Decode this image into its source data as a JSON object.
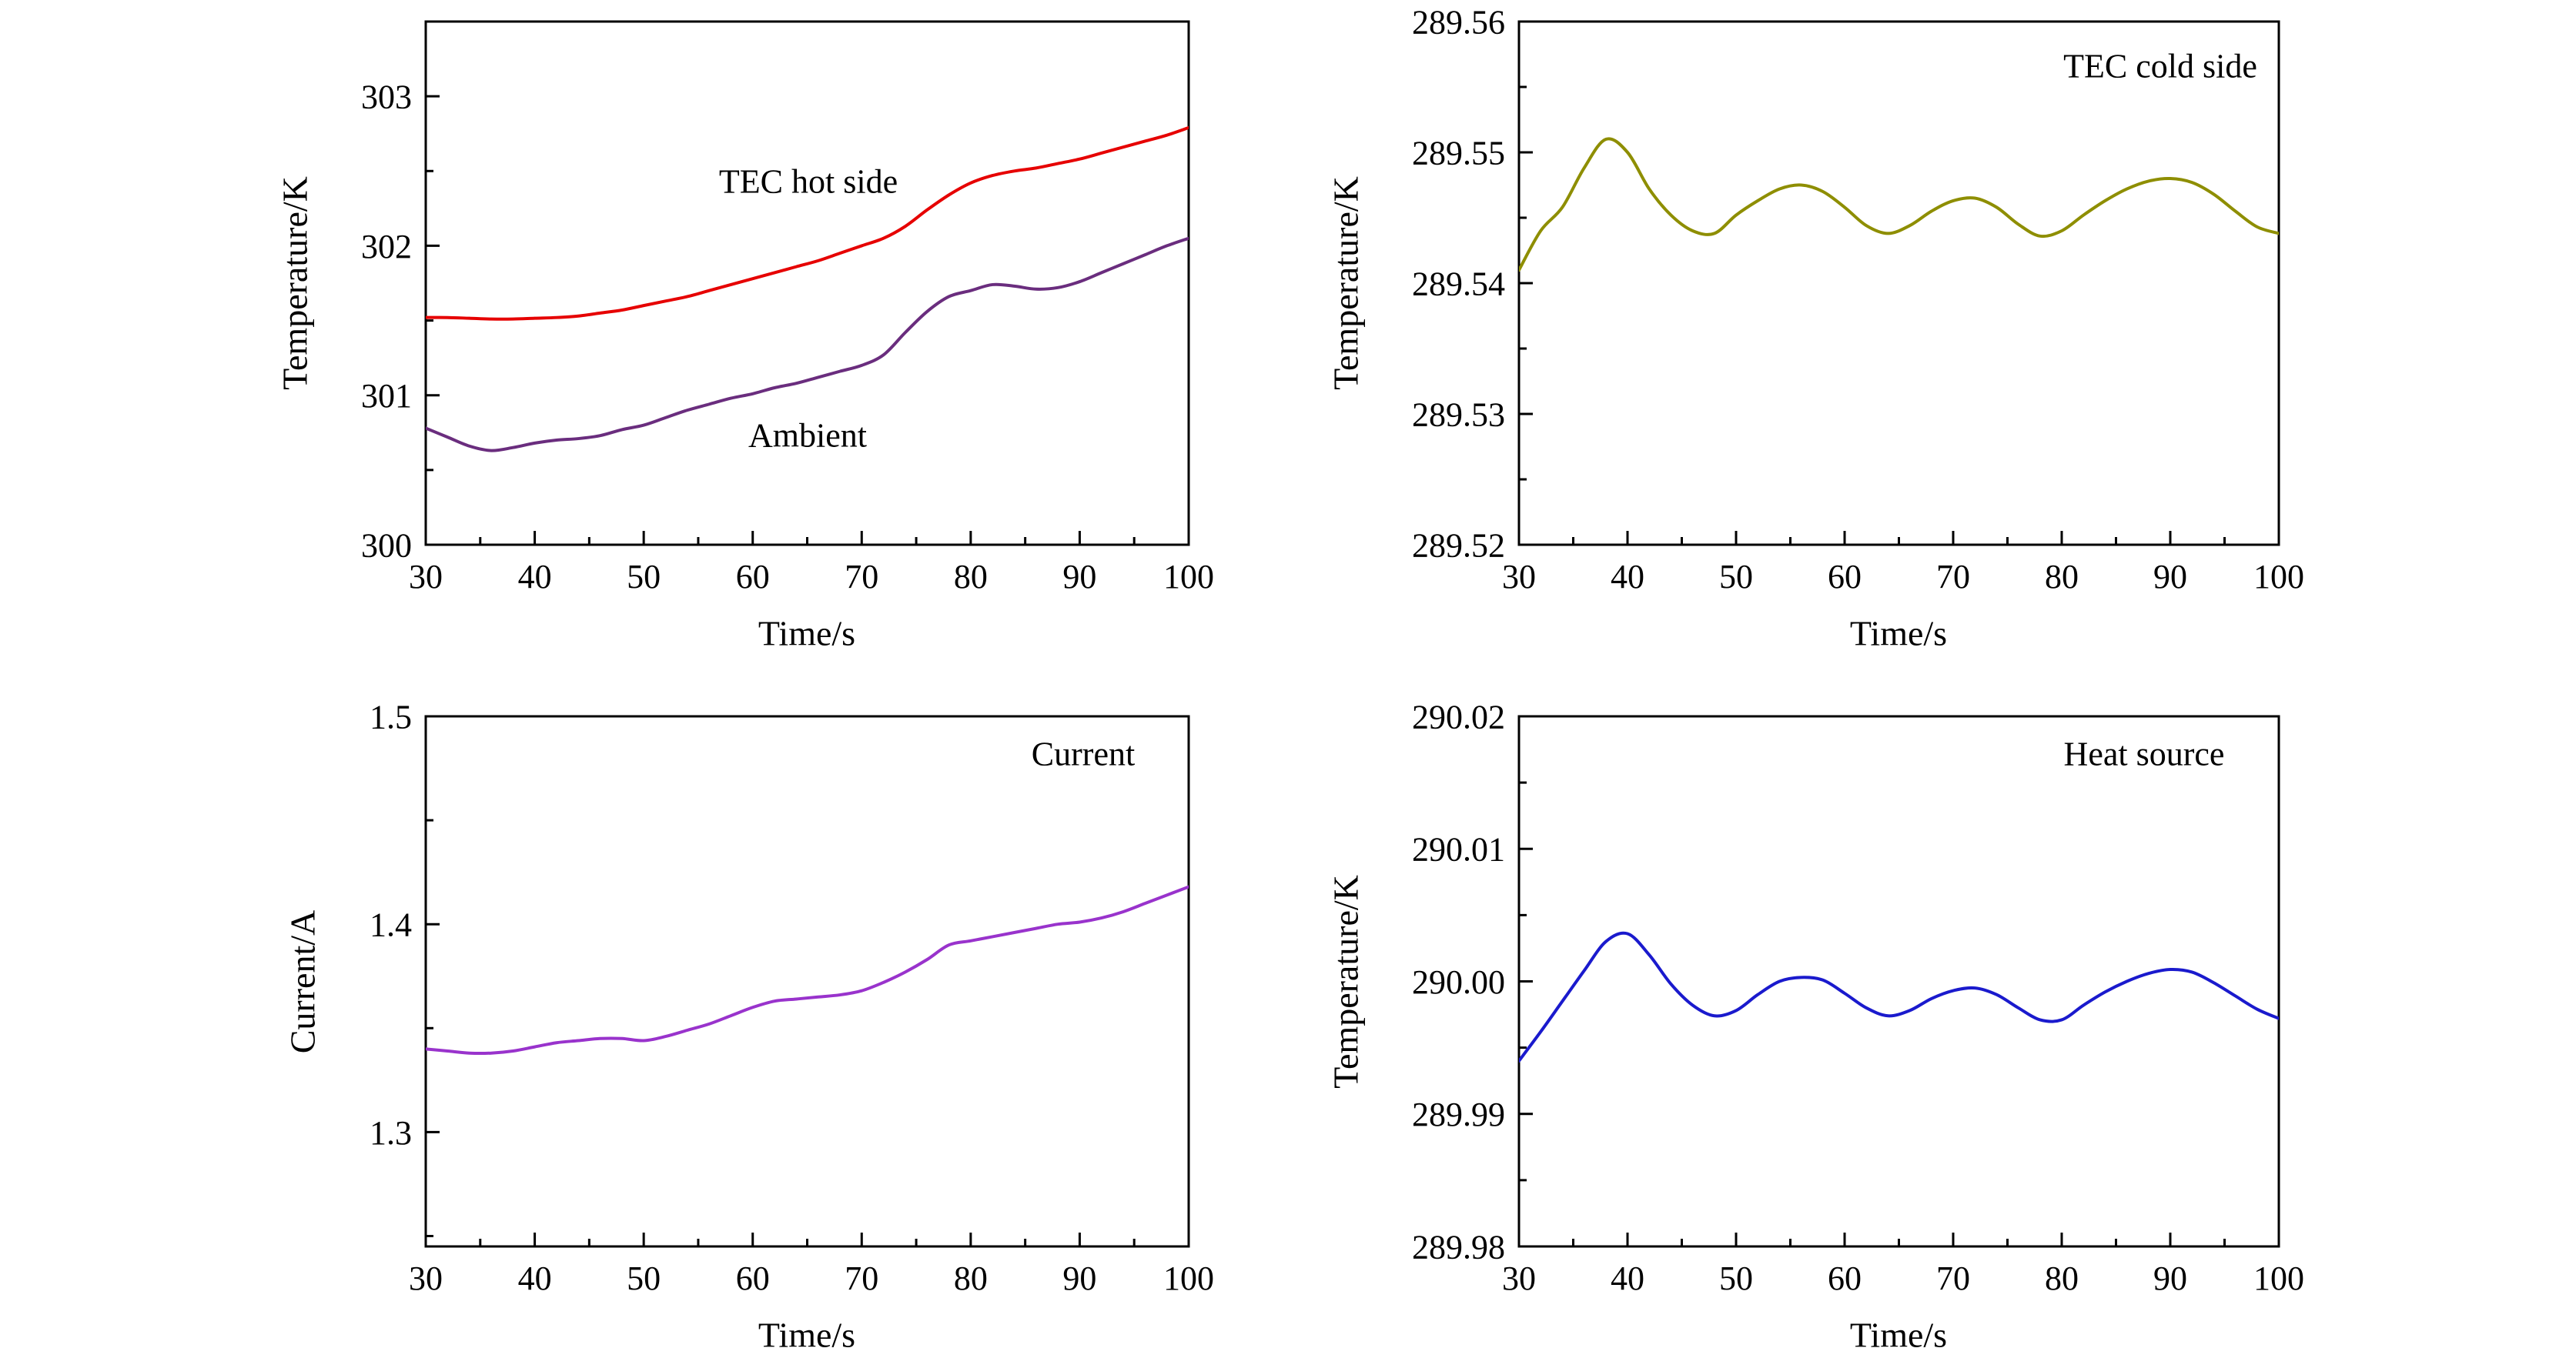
{
  "page": {
    "background": "#ffffff",
    "text_color": "#000000"
  },
  "chart_data": [
    {
      "type": "line",
      "title": "",
      "xlabel": "Time/s",
      "ylabel": "Temperature/K",
      "xlim": [
        30,
        100
      ],
      "ylim": [
        300,
        303.5
      ],
      "xticks": [
        30,
        40,
        50,
        60,
        70,
        80,
        90,
        100
      ],
      "xtick_labels": [
        "30",
        "40",
        "50",
        "60",
        "70",
        "80",
        "90",
        "100"
      ],
      "yticks": [
        300,
        301,
        302,
        303
      ],
      "ytick_labels": [
        "300",
        "301",
        "302",
        "303"
      ],
      "xminor_step": 5,
      "yminor_step": 0.5,
      "grid": false,
      "legend": "none",
      "series": [
        {
          "name": "TEC hot side",
          "color": "#e60000",
          "x": [
            30,
            32,
            34,
            36,
            38,
            40,
            42,
            44,
            46,
            48,
            50,
            52,
            54,
            56,
            58,
            60,
            62,
            64,
            66,
            68,
            70,
            72,
            74,
            76,
            78,
            80,
            82,
            84,
            86,
            88,
            90,
            92,
            94,
            96,
            98,
            100
          ],
          "y": [
            301.52,
            301.52,
            301.515,
            301.51,
            301.51,
            301.515,
            301.52,
            301.53,
            301.55,
            301.57,
            301.6,
            301.63,
            301.66,
            301.7,
            301.74,
            301.78,
            301.82,
            301.86,
            301.9,
            301.95,
            302.0,
            302.05,
            302.13,
            302.24,
            302.34,
            302.42,
            302.47,
            302.5,
            302.52,
            302.55,
            302.58,
            302.62,
            302.66,
            302.7,
            302.74,
            302.79
          ]
        },
        {
          "name": "Ambient",
          "color": "#6a2d7e",
          "x": [
            30,
            32,
            34,
            36,
            38,
            40,
            42,
            44,
            46,
            48,
            50,
            52,
            54,
            56,
            58,
            60,
            62,
            64,
            66,
            68,
            70,
            72,
            74,
            76,
            78,
            80,
            82,
            84,
            86,
            88,
            90,
            92,
            94,
            96,
            98,
            100
          ],
          "y": [
            300.78,
            300.72,
            300.66,
            300.63,
            300.65,
            300.68,
            300.7,
            300.71,
            300.73,
            300.77,
            300.8,
            300.85,
            300.9,
            300.94,
            300.98,
            301.01,
            301.05,
            301.08,
            301.12,
            301.16,
            301.2,
            301.27,
            301.42,
            301.56,
            301.66,
            301.7,
            301.74,
            301.73,
            301.71,
            301.72,
            301.76,
            301.82,
            301.88,
            301.94,
            302.0,
            302.05
          ]
        }
      ],
      "annotations": [
        {
          "text": "TEC hot side"
        },
        {
          "text": "Ambient"
        }
      ]
    },
    {
      "type": "line",
      "title": "",
      "xlabel": "Time/s",
      "ylabel": "Temperature/K",
      "xlim": [
        30,
        100
      ],
      "ylim": [
        289.52,
        289.56
      ],
      "xticks": [
        30,
        40,
        50,
        60,
        70,
        80,
        90,
        100
      ],
      "xtick_labels": [
        "30",
        "40",
        "50",
        "60",
        "70",
        "80",
        "90",
        "100"
      ],
      "yticks": [
        289.52,
        289.53,
        289.54,
        289.55,
        289.56
      ],
      "ytick_labels": [
        "289.52",
        "289.53",
        "289.54",
        "289.55",
        "289.56"
      ],
      "xminor_step": 5,
      "yminor_step": 0.005,
      "grid": false,
      "legend": "none",
      "series": [
        {
          "name": "TEC cold side",
          "color": "#8e8e00",
          "x": [
            30,
            32,
            34,
            36,
            38,
            40,
            42,
            44,
            46,
            48,
            50,
            52,
            54,
            56,
            58,
            60,
            62,
            64,
            66,
            68,
            70,
            72,
            74,
            76,
            78,
            80,
            82,
            84,
            86,
            88,
            90,
            92,
            94,
            96,
            98,
            100
          ],
          "y": [
            289.541,
            289.544,
            289.5458,
            289.5488,
            289.551,
            289.55,
            289.5472,
            289.5452,
            289.544,
            289.5438,
            289.5452,
            289.5463,
            289.5472,
            289.5475,
            289.547,
            289.5458,
            289.5444,
            289.5438,
            289.5444,
            289.5455,
            289.5463,
            289.5465,
            289.5458,
            289.5445,
            289.5436,
            289.544,
            289.5452,
            289.5463,
            289.5472,
            289.5478,
            289.548,
            289.5477,
            289.5468,
            289.5455,
            289.5443,
            289.5438
          ]
        }
      ],
      "annotations": [
        {
          "text": "TEC cold side"
        }
      ]
    },
    {
      "type": "line",
      "title": "",
      "xlabel": "Time/s",
      "ylabel": "Current/A",
      "xlim": [
        30,
        100
      ],
      "ylim": [
        1.245,
        1.5
      ],
      "xticks": [
        30,
        40,
        50,
        60,
        70,
        80,
        90,
        100
      ],
      "xtick_labels": [
        "30",
        "40",
        "50",
        "60",
        "70",
        "80",
        "90",
        "100"
      ],
      "yticks": [
        1.3,
        1.4,
        1.5
      ],
      "ytick_labels": [
        "1.3",
        "1.4",
        "1.5"
      ],
      "xminor_step": 5,
      "yminor_step": 0.05,
      "grid": false,
      "legend": "none",
      "series": [
        {
          "name": "Current",
          "color": "#9933cc",
          "x": [
            30,
            32,
            34,
            36,
            38,
            40,
            42,
            44,
            46,
            48,
            50,
            52,
            54,
            56,
            58,
            60,
            62,
            64,
            66,
            68,
            70,
            72,
            74,
            76,
            78,
            80,
            82,
            84,
            86,
            88,
            90,
            92,
            94,
            96,
            98,
            100
          ],
          "y": [
            1.34,
            1.339,
            1.338,
            1.338,
            1.339,
            1.341,
            1.343,
            1.344,
            1.345,
            1.345,
            1.344,
            1.346,
            1.349,
            1.352,
            1.356,
            1.36,
            1.363,
            1.364,
            1.365,
            1.366,
            1.368,
            1.372,
            1.377,
            1.383,
            1.39,
            1.392,
            1.394,
            1.396,
            1.398,
            1.4,
            1.401,
            1.403,
            1.406,
            1.41,
            1.414,
            1.418
          ]
        }
      ],
      "annotations": [
        {
          "text": "Current"
        }
      ]
    },
    {
      "type": "line",
      "title": "",
      "xlabel": "Time/s",
      "ylabel": "Temperature/K",
      "xlim": [
        30,
        100
      ],
      "ylim": [
        289.98,
        290.02
      ],
      "xticks": [
        30,
        40,
        50,
        60,
        70,
        80,
        90,
        100
      ],
      "xtick_labels": [
        "30",
        "40",
        "50",
        "60",
        "70",
        "80",
        "90",
        "100"
      ],
      "yticks": [
        289.98,
        289.99,
        290.0,
        290.01,
        290.02
      ],
      "ytick_labels": [
        "289.98",
        "289.99",
        "290.00",
        "290.01",
        "290.02"
      ],
      "xminor_step": 5,
      "yminor_step": 0.005,
      "grid": false,
      "legend": "none",
      "series": [
        {
          "name": "Heat source",
          "color": "#1a1acd",
          "x": [
            30,
            32,
            34,
            36,
            38,
            40,
            42,
            44,
            46,
            48,
            50,
            52,
            54,
            56,
            58,
            60,
            62,
            64,
            66,
            68,
            70,
            72,
            74,
            76,
            78,
            80,
            82,
            84,
            86,
            88,
            90,
            92,
            94,
            96,
            98,
            100
          ],
          "y": [
            289.994,
            289.9962,
            289.9985,
            290.0008,
            290.003,
            290.0036,
            290.002,
            289.9998,
            289.9982,
            289.9974,
            289.9978,
            289.999,
            290.0,
            290.0003,
            290.0001,
            289.9991,
            289.998,
            289.9974,
            289.9978,
            289.9987,
            289.9993,
            289.9995,
            289.999,
            289.998,
            289.9971,
            289.9971,
            289.9982,
            289.9992,
            290.0,
            290.0006,
            290.0009,
            290.0007,
            289.9999,
            289.9989,
            289.9979,
            289.9972
          ]
        }
      ],
      "annotations": [
        {
          "text": "Heat source"
        }
      ]
    }
  ]
}
